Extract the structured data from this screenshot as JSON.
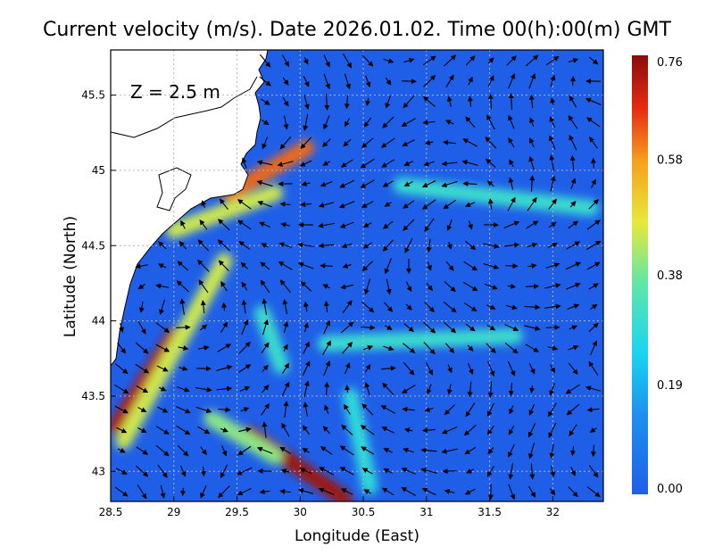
{
  "title": "Current velocity (m/s). Date 2026.01.02. Time 00(h):00(m) GMT",
  "depth_label": "Z = 2.5 m",
  "x_axis": {
    "label": "Longitude (East)",
    "min": 28.5,
    "max": 32.4,
    "ticks": [
      "28.5",
      "29",
      "29.5",
      "30",
      "30.5",
      "31",
      "31.5",
      "32"
    ],
    "tick_values": [
      28.5,
      29,
      29.5,
      30,
      30.5,
      31,
      31.5,
      32
    ]
  },
  "y_axis": {
    "label": "Latitude (North)",
    "min": 42.8,
    "max": 45.8,
    "ticks": [
      "43",
      "43.5",
      "44",
      "44.5",
      "45",
      "45.5"
    ],
    "tick_values": [
      43,
      43.5,
      44,
      44.5,
      45,
      45.5
    ]
  },
  "colorbar": {
    "ticks": [
      "0.76",
      "0.58",
      "0.38",
      "0.19",
      "0.00"
    ],
    "tick_values": [
      0.76,
      0.58,
      0.38,
      0.19,
      0.0
    ],
    "min": 0.0,
    "max": 0.76
  },
  "colors": {
    "background_sea": "#1f5fe8",
    "land": "#ffffff",
    "coast": "#000000",
    "grid": "#b4b4b4"
  },
  "grid": true,
  "chart_data": {
    "type": "heatmap",
    "title": "Current velocity (m/s). Date 2026.01.02. Time 00(h):00(m) GMT",
    "xlabel": "Longitude (East)",
    "ylabel": "Latitude (North)",
    "xlim": [
      28.5,
      32.4
    ],
    "ylim": [
      42.8,
      45.8
    ],
    "value_range": [
      0.0,
      0.76
    ],
    "jets": [
      {
        "from": [
          28.55,
          43.3
        ],
        "to": [
          29.0,
          43.9
        ],
        "speed": 0.72
      },
      {
        "from": [
          28.6,
          43.2
        ],
        "to": [
          29.4,
          44.4
        ],
        "speed": 0.45
      },
      {
        "from": [
          29.45,
          44.85
        ],
        "to": [
          30.05,
          45.15
        ],
        "speed": 0.62
      },
      {
        "from": [
          29.0,
          44.6
        ],
        "to": [
          29.8,
          44.85
        ],
        "speed": 0.45
      },
      {
        "from": [
          29.6,
          43.25
        ],
        "to": [
          30.35,
          42.82
        ],
        "speed": 0.74
      },
      {
        "from": [
          29.3,
          43.35
        ],
        "to": [
          29.8,
          43.1
        ],
        "speed": 0.4
      },
      {
        "from": [
          30.2,
          43.85
        ],
        "to": [
          31.7,
          43.9
        ],
        "speed": 0.3
      },
      {
        "from": [
          30.8,
          44.9
        ],
        "to": [
          32.3,
          44.75
        ],
        "speed": 0.3
      },
      {
        "from": [
          30.4,
          43.5
        ],
        "to": [
          30.55,
          42.9
        ],
        "speed": 0.28
      },
      {
        "from": [
          29.7,
          44.05
        ],
        "to": [
          29.85,
          43.7
        ],
        "speed": 0.3
      }
    ]
  }
}
